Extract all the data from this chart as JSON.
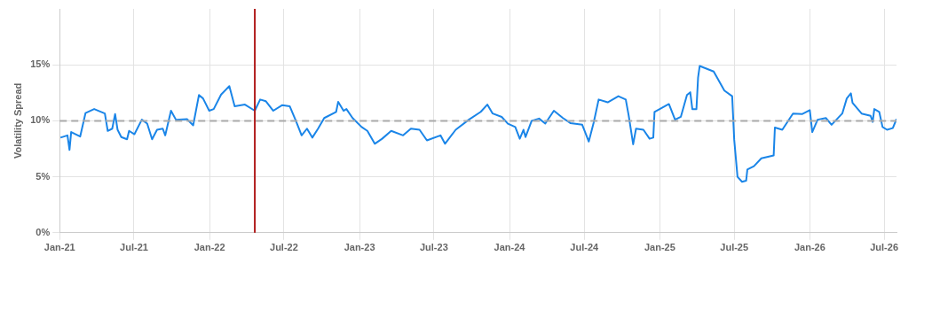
{
  "chart_data": {
    "type": "line",
    "ylabel": "Volatility Spread",
    "xlim": [
      "2021-01-01",
      "2026-07-31"
    ],
    "ylim": [
      0,
      20
    ],
    "xticks": [
      {
        "value": "2021-01",
        "label": "Jan-21"
      },
      {
        "value": "2021-07",
        "label": "Jul-21"
      },
      {
        "value": "2022-01",
        "label": "Jan-22"
      },
      {
        "value": "2022-07",
        "label": "Jul-22"
      },
      {
        "value": "2023-01",
        "label": "Jan-23"
      },
      {
        "value": "2023-07",
        "label": "Jul-23"
      },
      {
        "value": "2024-01",
        "label": "Jan-24"
      },
      {
        "value": "2024-07",
        "label": "Jul-24"
      },
      {
        "value": "2025-01",
        "label": "Jan-25"
      },
      {
        "value": "2025-07",
        "label": "Jul-25"
      },
      {
        "value": "2026-01",
        "label": "Jan-26"
      },
      {
        "value": "2026-07",
        "label": "Jul-26"
      }
    ],
    "yticks": [
      {
        "value": 0,
        "label": "0%"
      },
      {
        "value": 5,
        "label": "5%"
      },
      {
        "value": 10,
        "label": "10%"
      },
      {
        "value": 15,
        "label": "15%"
      }
    ],
    "grid": true,
    "legend": false,
    "marker": "none",
    "line_style": "solid",
    "ref_lines": [
      {
        "axis": "y",
        "value": 10,
        "color": "#aaaaaa",
        "line_style": "dashed"
      },
      {
        "axis": "x",
        "value": "2022-04-21",
        "color": "#b01c1c",
        "line_style": "solid"
      }
    ],
    "series": [
      {
        "color": "#1a85e8",
        "x": [
          "2021-01-03",
          "2021-01-20",
          "2021-01-25",
          "2021-01-29",
          "2021-02-20",
          "2021-03-05",
          "2021-03-26",
          "2021-04-21",
          "2021-04-28",
          "2021-05-09",
          "2021-05-16",
          "2021-05-22",
          "2021-05-31",
          "2021-06-14",
          "2021-06-19",
          "2021-07-02",
          "2021-07-20",
          "2021-08-02",
          "2021-08-14",
          "2021-08-26",
          "2021-09-09",
          "2021-09-15",
          "2021-09-29",
          "2021-10-11",
          "2021-11-07",
          "2021-11-22",
          "2021-12-06",
          "2021-12-16",
          "2021-12-31",
          "2022-01-11",
          "2022-01-29",
          "2022-02-18",
          "2022-03-03",
          "2022-03-28",
          "2022-04-21",
          "2022-05-04",
          "2022-05-18",
          "2022-06-05",
          "2022-06-27",
          "2022-07-15",
          "2022-07-30",
          "2022-08-13",
          "2022-08-26",
          "2022-09-08",
          "2022-09-22",
          "2022-10-07",
          "2022-11-05",
          "2022-11-10",
          "2022-11-23",
          "2022-11-30",
          "2022-12-15",
          "2023-01-06",
          "2023-01-20",
          "2023-02-07",
          "2023-02-25",
          "2023-03-19",
          "2023-04-17",
          "2023-05-06",
          "2023-05-27",
          "2023-06-14",
          "2023-07-17",
          "2023-07-28",
          "2023-08-23",
          "2023-09-24",
          "2023-10-23",
          "2023-11-08",
          "2023-11-21",
          "2023-12-13",
          "2023-12-28",
          "2024-01-15",
          "2024-01-26",
          "2024-02-04",
          "2024-02-09",
          "2024-02-24",
          "2024-03-13",
          "2024-03-28",
          "2024-04-18",
          "2024-05-10",
          "2024-05-28",
          "2024-06-26",
          "2024-07-12",
          "2024-07-24",
          "2024-08-05",
          "2024-08-27",
          "2024-09-22",
          "2024-10-10",
          "2024-10-17",
          "2024-10-28",
          "2024-11-04",
          "2024-11-22",
          "2024-12-07",
          "2024-12-16",
          "2024-12-19",
          "2025-01-23",
          "2025-02-07",
          "2025-02-21",
          "2025-03-08",
          "2025-03-16",
          "2025-03-21",
          "2025-03-31",
          "2025-04-04",
          "2025-04-08",
          "2025-05-12",
          "2025-06-07",
          "2025-06-26",
          "2025-07-01",
          "2025-07-09",
          "2025-07-20",
          "2025-07-30",
          "2025-08-02",
          "2025-08-18",
          "2025-09-05",
          "2025-10-05",
          "2025-10-08",
          "2025-10-26",
          "2025-11-21",
          "2025-12-13",
          "2026-01-01",
          "2026-01-07",
          "2026-01-20",
          "2026-02-09",
          "2026-02-23",
          "2026-03-21",
          "2026-04-01",
          "2026-04-11",
          "2026-04-15",
          "2026-05-07",
          "2026-05-29",
          "2026-06-03",
          "2026-06-07",
          "2026-06-19",
          "2026-06-27",
          "2026-07-08",
          "2026-07-22",
          "2026-07-31"
        ],
        "values": [
          8.5,
          8.7,
          7.4,
          9.0,
          8.6,
          10.7,
          11.05,
          10.65,
          9.1,
          9.3,
          10.6,
          9.2,
          8.55,
          8.35,
          9.1,
          8.8,
          10.1,
          9.75,
          8.35,
          9.2,
          9.3,
          8.7,
          10.9,
          10.1,
          10.15,
          9.6,
          12.3,
          12.0,
          10.9,
          11.05,
          12.35,
          13.1,
          11.3,
          11.45,
          10.9,
          11.9,
          11.75,
          10.9,
          11.4,
          11.3,
          10.0,
          8.7,
          9.3,
          8.5,
          9.3,
          10.25,
          10.8,
          11.7,
          10.9,
          11.05,
          10.25,
          9.45,
          9.1,
          7.95,
          8.4,
          9.1,
          8.7,
          9.3,
          9.2,
          8.25,
          8.7,
          7.95,
          9.2,
          10.1,
          10.8,
          11.45,
          10.65,
          10.35,
          9.75,
          9.45,
          8.4,
          9.2,
          8.55,
          10.0,
          10.2,
          9.75,
          10.9,
          10.25,
          9.8,
          9.65,
          8.15,
          9.85,
          11.9,
          11.65,
          12.2,
          11.9,
          10.5,
          7.9,
          9.3,
          9.2,
          8.4,
          8.5,
          10.8,
          11.5,
          10.1,
          10.35,
          12.3,
          12.55,
          11.05,
          11.05,
          13.85,
          14.9,
          14.4,
          12.7,
          12.2,
          8.3,
          5.0,
          4.55,
          4.65,
          5.65,
          5.95,
          6.65,
          6.9,
          9.4,
          9.2,
          10.65,
          10.6,
          10.95,
          9.0,
          10.1,
          10.25,
          9.65,
          10.65,
          12.0,
          12.45,
          11.6,
          10.65,
          10.45,
          9.9,
          11.05,
          10.8,
          9.45,
          9.2,
          9.35,
          10.15
        ]
      }
    ]
  }
}
